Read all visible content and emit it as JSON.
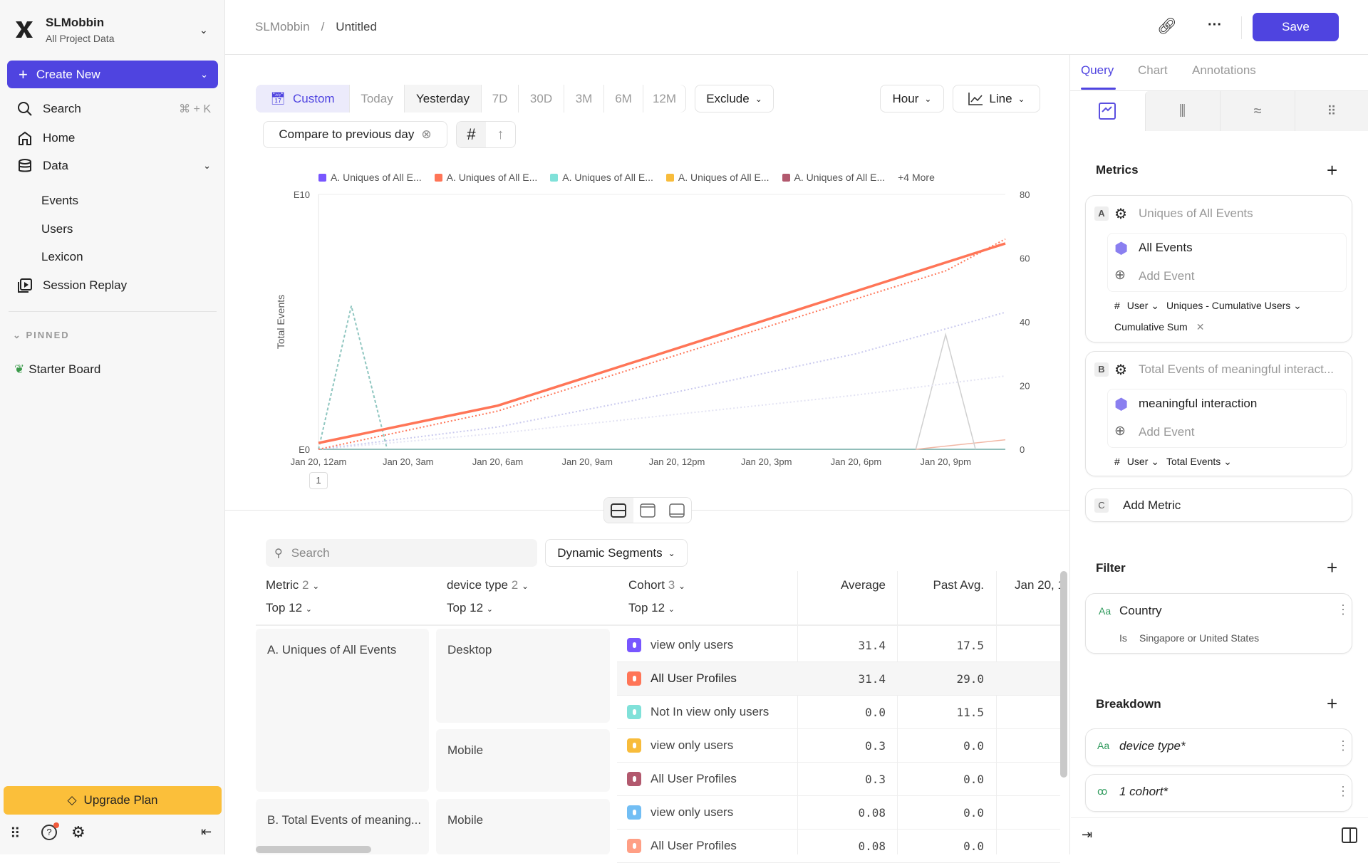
{
  "sidebar": {
    "project": "SLMobbin",
    "subtitle": "All Project Data",
    "create_new": "Create New",
    "search": "Search",
    "search_shortcut": "⌘ + K",
    "items": [
      {
        "label": "Home"
      },
      {
        "label": "Data"
      },
      {
        "label": "Events"
      },
      {
        "label": "Users"
      },
      {
        "label": "Lexicon"
      },
      {
        "label": "Session Replay"
      }
    ],
    "pinned_label": "PINNED",
    "pinned": [
      {
        "label": "Starter Board"
      }
    ],
    "upgrade": "Upgrade Plan"
  },
  "header": {
    "breadcrumb_root": "SLMobbin",
    "breadcrumb_sep": "/",
    "title": "Untitled",
    "save": "Save"
  },
  "toolbar": {
    "ranges": [
      "Custom",
      "Today",
      "Yesterday",
      "7D",
      "30D",
      "3M",
      "6M",
      "12M"
    ],
    "selected_range": "Yesterday",
    "exclude": "Exclude",
    "granularity": "Hour",
    "chart_type": "Line",
    "compare": "Compare to previous day"
  },
  "chart_data": {
    "type": "line",
    "ylabel": "Total Events",
    "y_left_ticks": [
      "E10",
      "E0"
    ],
    "y_right_ticks": [
      "80",
      "60",
      "40",
      "20",
      "0"
    ],
    "ylim_right": [
      0,
      80
    ],
    "xlim_hours": [
      0,
      23
    ],
    "x_ticks": [
      {
        "h": 0,
        "label": "Jan 20, 12am"
      },
      {
        "h": 3,
        "label": "Jan 20, 3am"
      },
      {
        "h": 6,
        "label": "Jan 20, 6am"
      },
      {
        "h": 9,
        "label": "Jan 20, 9am"
      },
      {
        "h": 12,
        "label": "Jan 20, 12pm"
      },
      {
        "h": 15,
        "label": "Jan 20, 3pm"
      },
      {
        "h": 18,
        "label": "Jan 20, 6pm"
      },
      {
        "h": 21,
        "label": "Jan 20, 9pm"
      }
    ],
    "legend": [
      {
        "label": "A. Uniques of All E...",
        "color": "#7856ff"
      },
      {
        "label": "A. Uniques of All E...",
        "color": "#ff7557"
      },
      {
        "label": "A. Uniques of All E...",
        "color": "#80e1d9"
      },
      {
        "label": "A. Uniques of All E...",
        "color": "#f8bc3b"
      },
      {
        "label": "A. Uniques of All E...",
        "color": "#b2596e"
      }
    ],
    "legend_more": "+4 More",
    "page_marker": "1",
    "series": [
      {
        "color": "#ff7557",
        "style": "solid",
        "points": [
          [
            0,
            2
          ],
          [
            6,
            13.7
          ],
          [
            23,
            64.6
          ]
        ]
      },
      {
        "color": "#ff7557",
        "style": "dotted",
        "points": [
          [
            0,
            0
          ],
          [
            6,
            12
          ],
          [
            21,
            56
          ],
          [
            23,
            66
          ]
        ]
      },
      {
        "color": "#c9c9ee",
        "style": "dotted",
        "points": [
          [
            0,
            0
          ],
          [
            6,
            7
          ],
          [
            12,
            18
          ],
          [
            18,
            30
          ],
          [
            23,
            43
          ]
        ]
      },
      {
        "color": "#e3e3f3",
        "style": "dotted",
        "points": [
          [
            0,
            0
          ],
          [
            6,
            5
          ],
          [
            12,
            11
          ],
          [
            18,
            17
          ],
          [
            23,
            23
          ]
        ]
      },
      {
        "color": "#8fc6c0",
        "style": "dashed",
        "points": [
          [
            0,
            0
          ],
          [
            1.1,
            45
          ],
          [
            2.3,
            0
          ]
        ]
      },
      {
        "color": "#d0d0d0",
        "style": "solid",
        "points": [
          [
            20,
            0
          ],
          [
            21,
            36
          ],
          [
            22,
            0
          ]
        ]
      },
      {
        "color": "#f2b8a6",
        "style": "solid",
        "points": [
          [
            20,
            0
          ],
          [
            23,
            3
          ]
        ]
      },
      {
        "color": "#6fa8a3",
        "style": "solid",
        "points": [
          [
            0,
            0
          ],
          [
            23,
            0
          ]
        ]
      }
    ]
  },
  "table": {
    "search_placeholder": "Search",
    "dynamic_segments": "Dynamic Segments",
    "headers": {
      "metric": "Metric",
      "metric_count": "2",
      "device": "device type",
      "device_count": "2",
      "cohort": "Cohort",
      "cohort_count": "3",
      "top": "Top 12",
      "average": "Average",
      "past_avg": "Past Avg.",
      "date": "Jan 20, 1"
    },
    "metrics": [
      "A. Uniques of All Events",
      "B. Total Events of meaning..."
    ],
    "devices": [
      "Desktop",
      "Mobile",
      "Mobile"
    ],
    "rows": [
      {
        "cohort": "view only users",
        "color": "#7856ff",
        "avg": "31.4",
        "past": "17.5"
      },
      {
        "cohort": "All User Profiles",
        "color": "#ff7557",
        "avg": "31.4",
        "past": "29.0"
      },
      {
        "cohort": "Not In view only users",
        "color": "#80e1d9",
        "avg": "0.0",
        "past": "11.5"
      },
      {
        "cohort": "view only users",
        "color": "#f8bc3b",
        "avg": "0.3",
        "past": "0.0"
      },
      {
        "cohort": "All User Profiles",
        "color": "#b2596e",
        "avg": "0.3",
        "past": "0.0"
      },
      {
        "cohort": "view only users",
        "color": "#72bef4",
        "avg": "0.08",
        "past": "0.0"
      },
      {
        "cohort": "All User Profiles",
        "color": "#ff9f85",
        "avg": "0.08",
        "past": "0.0"
      }
    ]
  },
  "panel": {
    "tabs": [
      "Query",
      "Chart",
      "Annotations"
    ],
    "metrics_title": "Metrics",
    "metric_a": {
      "letter": "A",
      "title": "Uniques of All Events",
      "event": "All Events",
      "add_event": "Add Event",
      "hash": "#",
      "user": "User",
      "measure": "Uniques - Cumulative Users",
      "modifier": "Cumulative Sum"
    },
    "metric_b": {
      "letter": "B",
      "title": "Total Events of meaningful interact...",
      "event": "meaningful interaction",
      "add_event": "Add Event",
      "hash": "#",
      "user": "User",
      "measure": "Total Events"
    },
    "metric_c": {
      "letter": "C",
      "label": "Add Metric"
    },
    "filter_title": "Filter",
    "filter": {
      "type_icon": "Aa",
      "property": "Country",
      "operator": "Is",
      "value": "Singapore or United States"
    },
    "breakdown_title": "Breakdown",
    "breakdowns": [
      {
        "icon": "Aa",
        "label": "device type*"
      },
      {
        "label": "1 cohort*"
      }
    ]
  },
  "colors": {
    "accent": "#4f44e0",
    "upgrade": "#fbbf3a"
  }
}
